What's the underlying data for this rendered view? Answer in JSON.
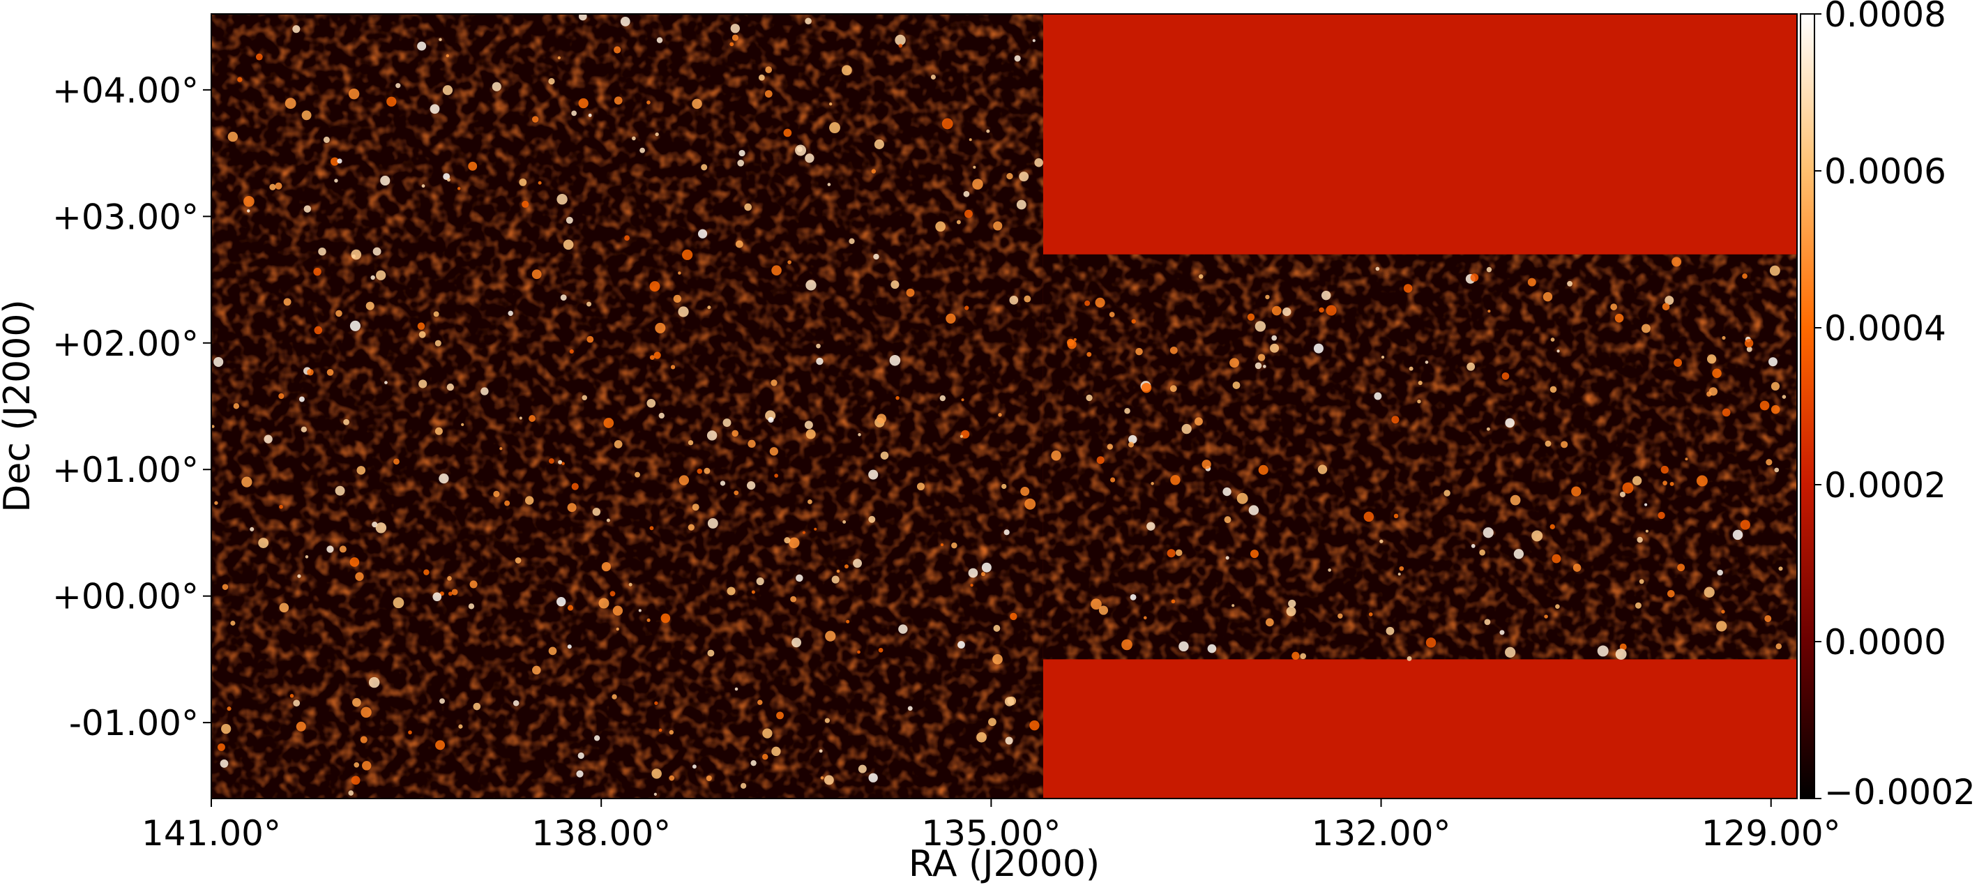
{
  "chart_data": {
    "type": "heatmap",
    "title": "",
    "xlabel": "RA (J2000)",
    "ylabel": "Dec (J2000)",
    "xlim": [
      141.0,
      128.8
    ],
    "ylim": [
      -1.6,
      4.6
    ],
    "x_ticks": [
      141.0,
      138.0,
      135.0,
      132.0,
      129.0
    ],
    "x_tick_labels": [
      "141.00°",
      "138.00°",
      "135.00°",
      "132.00°",
      "129.00°"
    ],
    "y_ticks": [
      4.0,
      3.0,
      2.0,
      1.0,
      0.0,
      -1.0
    ],
    "y_tick_labels": [
      "+04.00°",
      "+03.00°",
      "+02.00°",
      "+01.00°",
      "+00.00°",
      "-01.00°"
    ],
    "colormap": "gist_heat",
    "colorbar": {
      "min": -0.0002,
      "max": 0.0008,
      "ticks": [
        0.0008,
        0.0006,
        0.0004,
        0.0002,
        0.0,
        -0.0002
      ],
      "tick_labels": [
        "0.0008",
        "0.0006",
        "0.0004",
        "0.0002",
        "0.0000",
        "−0.0002"
      ]
    },
    "background_value": 0.0002,
    "grid": false,
    "survey_footprint": {
      "west_block": {
        "ra": [
          141.0,
          134.6
        ],
        "dec": [
          -1.6,
          4.6
        ]
      },
      "east_block": {
        "ra": [
          134.6,
          128.8
        ],
        "dec": [
          -0.5,
          2.7
        ]
      }
    }
  }
}
